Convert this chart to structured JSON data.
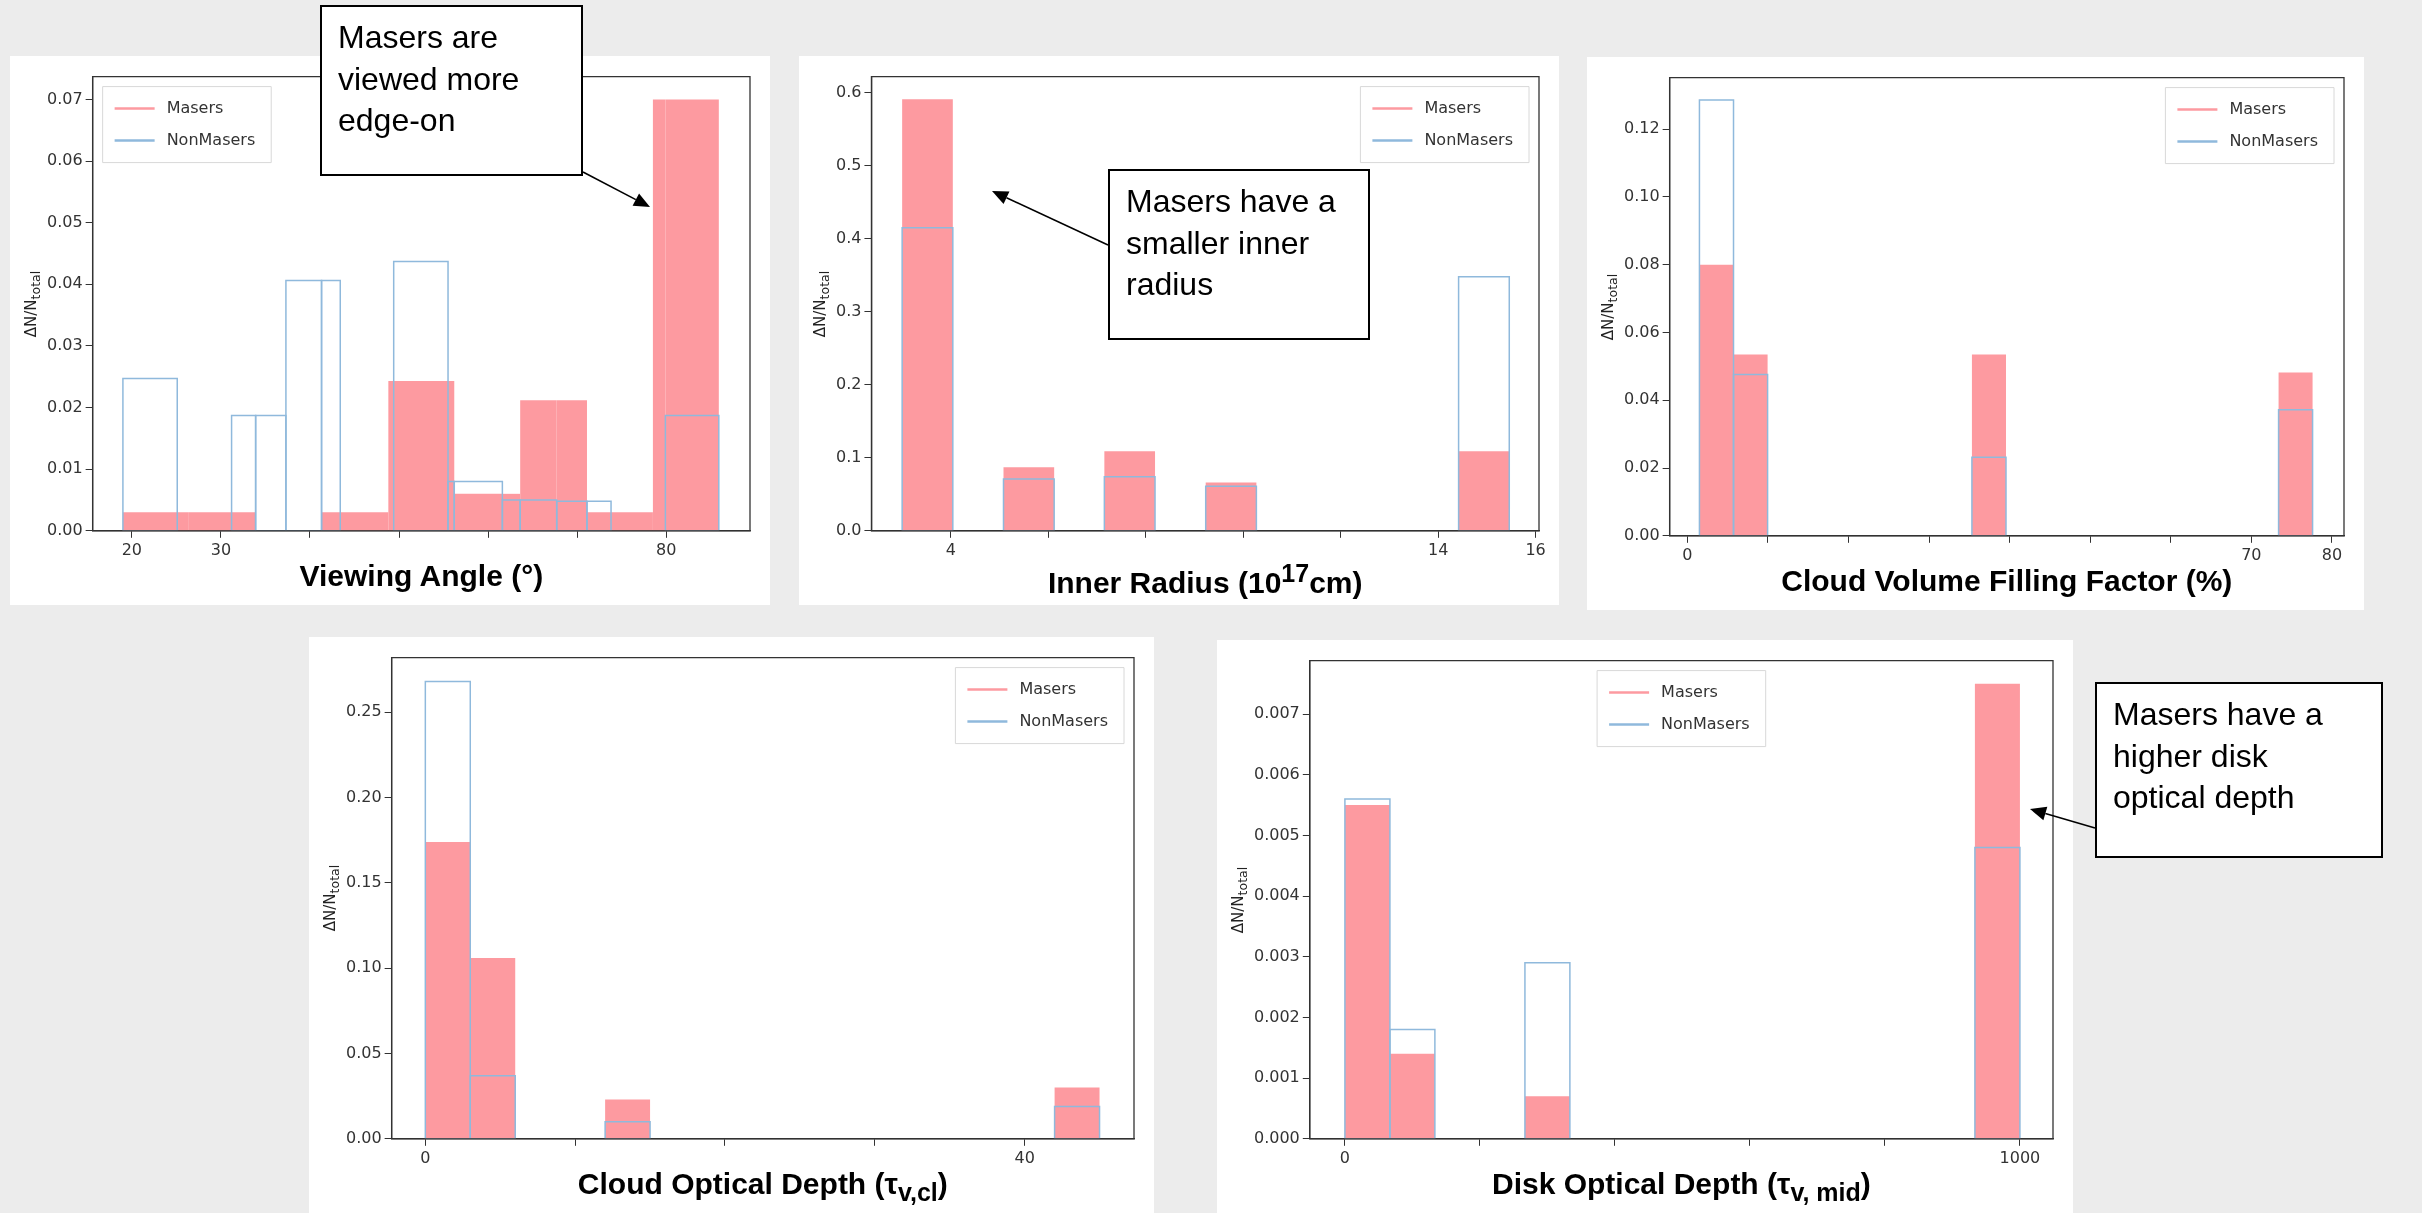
{
  "chart_data": [
    {
      "type": "histogram",
      "xlabel": "Viewing Angle (°)",
      "ylabel": "ΔN/N$_{total}$",
      "legend": "top left",
      "xlim": [
        15.6,
        89.4
      ],
      "xticks": [
        20,
        30,
        {
          "value": 40,
          "label": null
        },
        {
          "value": 50,
          "label": null
        },
        {
          "value": 60,
          "label": null
        },
        {
          "value": 70,
          "label": null
        },
        80
      ],
      "ylim": [
        0,
        0.0737
      ],
      "yticks": [
        {
          "value": 0,
          "label": "0.00"
        },
        0.01,
        0.02,
        0.03,
        0.04,
        0.05,
        0.06,
        0.07
      ],
      "bins": [
        19.0,
        25.1,
        26.4,
        31.2,
        33.9,
        37.3,
        41.3,
        43.4,
        48.8,
        49.4,
        55.5,
        56.2,
        61.6,
        63.6,
        67.7,
        71.1,
        73.8,
        78.5,
        79.9,
        85.9
      ],
      "series": [
        {
          "name": "Masers",
          "color": "#fd9aa0",
          "values": [
            0.003,
            0.003,
            0.003,
            0.003,
            0,
            0,
            0.003,
            0.003,
            0.0243,
            0.0243,
            0.0243,
            0.006,
            0.006,
            0.0212,
            0.0212,
            0.003,
            0.003,
            0.07,
            0.07
          ]
        },
        {
          "name": "NonMasers",
          "color": "#8fb9dc",
          "values": [
            0.0247,
            0,
            0,
            0.0187,
            0.0187,
            0.0406,
            0.0406,
            0,
            0,
            0.0437,
            0.008,
            0.008,
            0.005,
            0.005,
            0.0048,
            0.0048,
            0,
            0,
            0.0187
          ]
        }
      ],
      "annotations": [
        "Masers are viewed more edge-on"
      ]
    },
    {
      "type": "histogram",
      "xlabel": "Inner Radius (10$^{17}$cm)",
      "ylabel": "ΔN/N$_{total}$",
      "legend": "top right",
      "xlim": [
        2.37,
        16.07
      ],
      "xticks": [
        4,
        {
          "value": 6,
          "label": null
        },
        {
          "value": 8,
          "label": null
        },
        {
          "value": 10,
          "label": null
        },
        {
          "value": 12,
          "label": null
        },
        14,
        16
      ],
      "ylim": [
        0,
        0.622
      ],
      "yticks": [
        {
          "value": 0,
          "label": "0.0"
        },
        0.1,
        0.2,
        0.3,
        0.4,
        0.5,
        0.6
      ],
      "bins": [
        3.0,
        4.04,
        5.08,
        6.12,
        7.15,
        8.19,
        9.23,
        10.27,
        11.31,
        12.35,
        13.38,
        14.42,
        15.46
      ],
      "series": [
        {
          "name": "Masers",
          "color": "#fd9aa0",
          "values": [
            0.591,
            0,
            0.087,
            0,
            0.109,
            0,
            0.066,
            0,
            0,
            0,
            0,
            0.109
          ]
        },
        {
          "name": "NonMasers",
          "color": "#8fb9dc",
          "values": [
            0.415,
            0,
            0.071,
            0,
            0.074,
            0,
            0.061,
            0,
            0,
            0,
            0,
            0.348
          ]
        }
      ],
      "annotations": [
        "Masers have a smaller inner radius"
      ]
    },
    {
      "type": "histogram",
      "xlabel": "Cloud Volume Filling Factor (%)",
      "ylabel": "ΔN/N$_{total}$",
      "legend": "top right",
      "xlim": [
        -2.2,
        81.5
      ],
      "xticks": [
        0,
        {
          "value": 10,
          "label": null
        },
        {
          "value": 20,
          "label": null
        },
        {
          "value": 30,
          "label": null
        },
        {
          "value": 40,
          "label": null
        },
        {
          "value": 50,
          "label": null
        },
        {
          "value": 60,
          "label": null
        },
        70,
        80
      ],
      "ylim": [
        0,
        0.1352
      ],
      "yticks": [
        {
          "value": 0,
          "label": "0.00"
        },
        {
          "value": 0.02,
          "label": "0.02"
        },
        {
          "value": 0.04,
          "label": "0.04"
        },
        {
          "value": 0.06,
          "label": "0.06"
        },
        {
          "value": 0.08,
          "label": "0.08"
        },
        {
          "value": 0.1,
          "label": "0.10"
        },
        {
          "value": 0.12,
          "label": "0.12"
        }
      ],
      "bins": [
        1.5,
        5.73,
        9.96,
        14.18,
        18.41,
        22.64,
        26.87,
        31.1,
        35.32,
        39.55,
        43.78,
        48.01,
        52.24,
        56.46,
        60.69,
        64.92,
        69.15,
        73.38,
        77.6
      ],
      "series": [
        {
          "name": "Masers",
          "color": "#fd9aa0",
          "values": [
            0.08,
            0.0535,
            0,
            0,
            0,
            0,
            0,
            0,
            0.0535,
            0,
            0,
            0,
            0,
            0,
            0,
            0,
            0,
            0.0482
          ]
        },
        {
          "name": "NonMasers",
          "color": "#8fb9dc",
          "values": [
            0.1286,
            0.0476,
            0,
            0,
            0,
            0,
            0,
            0,
            0.0232,
            0,
            0,
            0,
            0,
            0,
            0,
            0,
            0,
            0.0372
          ]
        }
      ]
    },
    {
      "type": "histogram",
      "xlabel": "Cloud Optical Depth (τ$_{v,cl}$)",
      "ylabel": "ΔN/N$_{total}$",
      "legend": "top right",
      "xlim": [
        -2.25,
        47.3
      ],
      "xticks": [
        0,
        {
          "value": 10,
          "label": null
        },
        {
          "value": 20,
          "label": null
        },
        {
          "value": 30,
          "label": null
        },
        40
      ],
      "ylim": [
        0,
        0.282
      ],
      "yticks": [
        {
          "value": 0,
          "label": "0.00"
        },
        0.05,
        {
          "value": 0.1,
          "label": "0.10"
        },
        0.15,
        {
          "value": 0.2,
          "label": "0.20"
        },
        0.25
      ],
      "bins": [
        0,
        3,
        6,
        9,
        12,
        15,
        18,
        21,
        24,
        27,
        30,
        33,
        36,
        39,
        42,
        45
      ],
      "series": [
        {
          "name": "Masers",
          "color": "#fd9aa0",
          "values": [
            0.174,
            0.106,
            0,
            0,
            0.023,
            0,
            0,
            0,
            0,
            0,
            0,
            0,
            0,
            0,
            0.03
          ]
        },
        {
          "name": "NonMasers",
          "color": "#8fb9dc",
          "values": [
            0.268,
            0.037,
            0,
            0,
            0.01,
            0,
            0,
            0,
            0,
            0,
            0,
            0,
            0,
            0,
            0.019
          ]
        }
      ]
    },
    {
      "type": "histogram",
      "xlabel": "Disk Optical Depth (τ$_{v, mid}$)",
      "ylabel": "ΔN/N$_{total}$",
      "legend": "top",
      "xlim": [
        -52,
        1049
      ],
      "xticks": [
        0,
        {
          "value": 200,
          "label": null
        },
        {
          "value": 400,
          "label": null
        },
        {
          "value": 600,
          "label": null
        },
        {
          "value": 800,
          "label": null
        },
        1000
      ],
      "ylim": [
        0,
        0.00788
      ],
      "yticks": [
        {
          "value": 0,
          "label": "0.000"
        },
        0.001,
        0.002,
        0.003,
        0.004,
        0.005,
        0.006,
        0.007
      ],
      "bins": [
        0,
        66.7,
        133.3,
        200,
        266.7,
        333.3,
        400,
        466.7,
        533.3,
        600,
        666.7,
        733.3,
        800,
        866.7,
        933.3,
        1000
      ],
      "series": [
        {
          "name": "Masers",
          "color": "#fd9aa0",
          "values": [
            0.0055,
            0.0014,
            0,
            0,
            0.0007,
            0,
            0,
            0,
            0,
            0,
            0,
            0,
            0,
            0,
            0.0075
          ]
        },
        {
          "name": "NonMasers",
          "color": "#8fb9dc",
          "values": [
            0.0056,
            0.0018,
            0,
            0,
            0.0029,
            0,
            0,
            0,
            0,
            0,
            0,
            0,
            0,
            0,
            0.0048
          ]
        }
      ],
      "annotations": [
        "Masers have a higher disk optical depth"
      ]
    }
  ]
}
